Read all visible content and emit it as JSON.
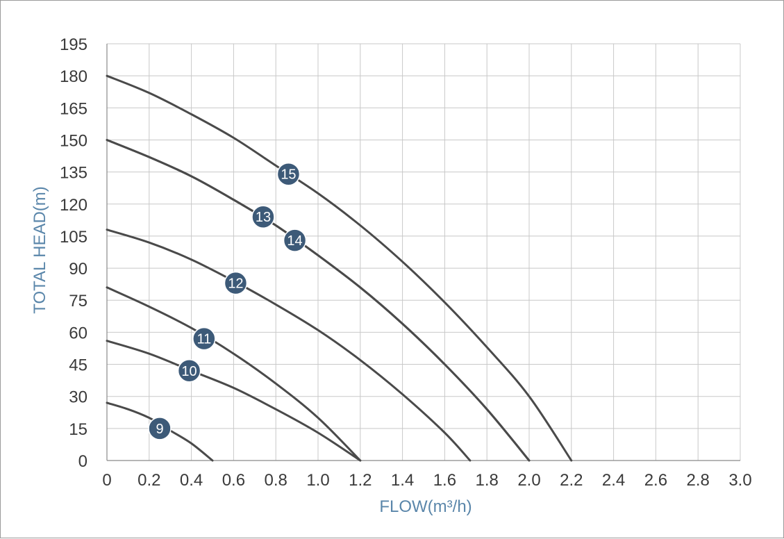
{
  "chart_data": {
    "type": "line",
    "xlabel": "FLOW(m³/h)",
    "ylabel": "TOTAL HEAD(m)",
    "xlim": [
      0,
      3.0
    ],
    "ylim": [
      0,
      195
    ],
    "x_ticks": [
      "0",
      "0.2",
      "0.4",
      "0.6",
      "0.8",
      "1.0",
      "1.2",
      "1.4",
      "1.6",
      "1.8",
      "2.0",
      "2.2",
      "2.4",
      "2.6",
      "2.8",
      "3.0"
    ],
    "y_ticks": [
      "0",
      "15",
      "30",
      "45",
      "60",
      "75",
      "90",
      "105",
      "120",
      "135",
      "150",
      "165",
      "180",
      "195"
    ],
    "grid": true,
    "colors": {
      "curve": "#4a4a4a",
      "grid": "#c8c8c8",
      "badge": "#3d5a78",
      "axis_title": "#5a86aa"
    },
    "series": [
      {
        "name": "9",
        "label": "9",
        "points": [
          [
            0,
            27
          ],
          [
            0.1,
            24
          ],
          [
            0.2,
            20
          ],
          [
            0.25,
            17
          ],
          [
            0.3,
            14
          ],
          [
            0.4,
            8
          ],
          [
            0.5,
            0
          ]
        ],
        "label_at": [
          0.25,
          15
        ]
      },
      {
        "name": "10",
        "label": "10",
        "points": [
          [
            0,
            56
          ],
          [
            0.2,
            50
          ],
          [
            0.4,
            42
          ],
          [
            0.6,
            34
          ],
          [
            0.8,
            24
          ],
          [
            1.0,
            13
          ],
          [
            1.2,
            0
          ]
        ],
        "label_at": [
          0.39,
          42
        ]
      },
      {
        "name": "11",
        "label": "11",
        "points": [
          [
            0,
            81
          ],
          [
            0.2,
            72
          ],
          [
            0.4,
            62
          ],
          [
            0.6,
            50
          ],
          [
            0.8,
            36
          ],
          [
            1.0,
            20
          ],
          [
            1.2,
            0
          ]
        ],
        "label_at": [
          0.46,
          57
        ]
      },
      {
        "name": "12",
        "label": "12",
        "points": [
          [
            0,
            108
          ],
          [
            0.2,
            102
          ],
          [
            0.4,
            94
          ],
          [
            0.6,
            84
          ],
          [
            0.8,
            73
          ],
          [
            1.0,
            61
          ],
          [
            1.2,
            47
          ],
          [
            1.4,
            31
          ],
          [
            1.6,
            13
          ],
          [
            1.72,
            0
          ]
        ],
        "label_at": [
          0.61,
          83
        ]
      },
      {
        "name": "13",
        "label": "13",
        "points": [
          [
            0,
            150
          ],
          [
            0.2,
            142
          ],
          [
            0.4,
            133
          ],
          [
            0.6,
            122
          ],
          [
            0.8,
            110
          ],
          [
            1.0,
            96
          ],
          [
            1.2,
            81
          ],
          [
            1.4,
            64
          ],
          [
            1.6,
            45
          ],
          [
            1.8,
            24
          ],
          [
            2.0,
            0
          ]
        ],
        "label_at": [
          0.74,
          114
        ]
      },
      {
        "name": "14",
        "label": "14",
        "points": [
          [
            0,
            150
          ],
          [
            0.2,
            142
          ],
          [
            0.4,
            133
          ],
          [
            0.6,
            122
          ],
          [
            0.8,
            110
          ],
          [
            1.0,
            96
          ],
          [
            1.2,
            81
          ],
          [
            1.4,
            64
          ],
          [
            1.6,
            45
          ],
          [
            1.8,
            24
          ],
          [
            2.0,
            0
          ]
        ],
        "label_at": [
          0.89,
          103
        ]
      },
      {
        "name": "15",
        "label": "15",
        "points": [
          [
            0,
            180
          ],
          [
            0.2,
            172
          ],
          [
            0.4,
            162
          ],
          [
            0.6,
            151
          ],
          [
            0.8,
            138
          ],
          [
            1.0,
            125
          ],
          [
            1.2,
            110
          ],
          [
            1.4,
            93
          ],
          [
            1.6,
            74
          ],
          [
            1.8,
            53
          ],
          [
            2.0,
            30
          ],
          [
            2.2,
            0
          ]
        ],
        "label_at": [
          0.86,
          134
        ]
      }
    ]
  }
}
